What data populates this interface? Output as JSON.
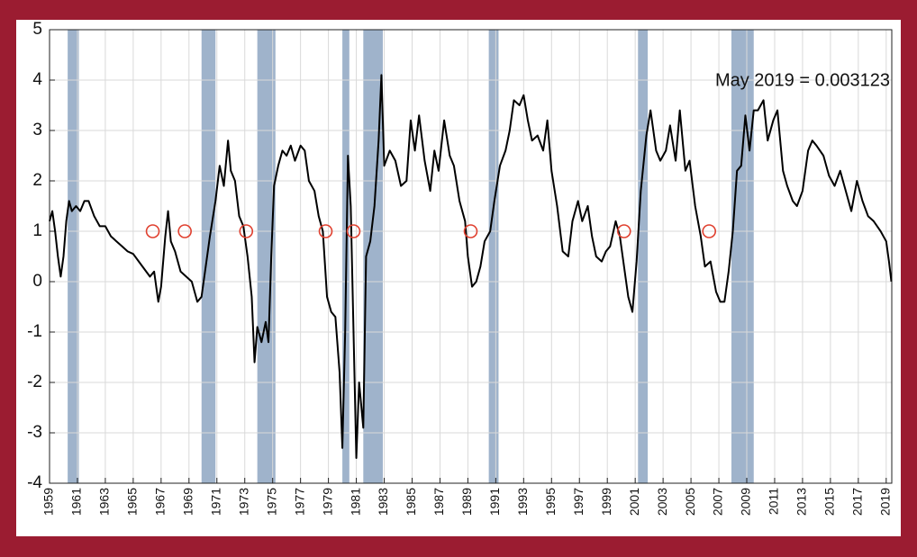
{
  "chart_data": {
    "type": "line",
    "annotation": "May 2019 = 0.003123",
    "x": [
      1959.0,
      1959.2,
      1959.4,
      1959.6,
      1959.8,
      1960.0,
      1960.2,
      1960.4,
      1960.6,
      1960.9,
      1961.2,
      1961.5,
      1961.8,
      1962.2,
      1962.6,
      1963.0,
      1963.4,
      1963.8,
      1964.2,
      1964.6,
      1965.0,
      1965.4,
      1965.8,
      1966.2,
      1966.5,
      1966.8,
      1967.0,
      1967.3,
      1967.5,
      1967.7,
      1968.0,
      1968.4,
      1968.8,
      1969.2,
      1969.6,
      1969.9,
      1970.2,
      1970.5,
      1970.9,
      1971.2,
      1971.5,
      1971.8,
      1972.0,
      1972.3,
      1972.6,
      1972.9,
      1973.2,
      1973.5,
      1973.7,
      1973.9,
      1974.2,
      1974.5,
      1974.7,
      1974.9,
      1975.1,
      1975.4,
      1975.7,
      1976.0,
      1976.3,
      1976.6,
      1977.0,
      1977.3,
      1977.6,
      1978.0,
      1978.3,
      1978.6,
      1978.9,
      1979.2,
      1979.5,
      1979.8,
      1980.0,
      1980.2,
      1980.4,
      1980.6,
      1980.8,
      1981.0,
      1981.2,
      1981.5,
      1981.7,
      1982.0,
      1982.3,
      1982.6,
      1982.8,
      1983.0,
      1983.4,
      1983.8,
      1984.2,
      1984.6,
      1984.9,
      1985.2,
      1985.5,
      1985.9,
      1986.3,
      1986.6,
      1986.9,
      1987.3,
      1987.7,
      1988.0,
      1988.4,
      1988.8,
      1989.0,
      1989.3,
      1989.6,
      1989.9,
      1990.2,
      1990.6,
      1990.9,
      1991.3,
      1991.7,
      1992.0,
      1992.3,
      1992.7,
      1993.0,
      1993.3,
      1993.6,
      1994.0,
      1994.4,
      1994.7,
      1995.0,
      1995.4,
      1995.8,
      1996.2,
      1996.5,
      1996.9,
      1997.2,
      1997.6,
      1997.9,
      1998.2,
      1998.6,
      1998.9,
      1999.2,
      1999.6,
      1999.9,
      2000.2,
      2000.5,
      2000.8,
      2001.1,
      2001.4,
      2001.8,
      2002.1,
      2002.5,
      2002.8,
      2003.2,
      2003.5,
      2003.9,
      2004.2,
      2004.6,
      2004.9,
      2005.3,
      2005.7,
      2006.0,
      2006.4,
      2006.8,
      2007.1,
      2007.4,
      2007.7,
      2008.0,
      2008.3,
      2008.6,
      2008.9,
      2009.2,
      2009.5,
      2009.8,
      2010.2,
      2010.5,
      2010.9,
      2011.2,
      2011.6,
      2011.9,
      2012.3,
      2012.6,
      2013.0,
      2013.4,
      2013.7,
      2014.0,
      2014.5,
      2014.9,
      2015.3,
      2015.7,
      2016.0,
      2016.5,
      2016.9,
      2017.3,
      2017.7,
      2018.1,
      2018.6,
      2019.0,
      2019.2,
      2019.37
    ],
    "series": [
      {
        "color": "#000000",
        "values": [
          1.2,
          1.4,
          1.0,
          0.5,
          0.1,
          0.5,
          1.2,
          1.6,
          1.4,
          1.5,
          1.4,
          1.6,
          1.6,
          1.3,
          1.1,
          1.1,
          0.9,
          0.8,
          0.7,
          0.6,
          0.55,
          0.4,
          0.25,
          0.1,
          0.2,
          -0.4,
          -0.1,
          0.9,
          1.4,
          0.8,
          0.6,
          0.2,
          0.1,
          0.0,
          -0.4,
          -0.3,
          0.3,
          0.9,
          1.6,
          2.3,
          1.9,
          2.8,
          2.2,
          2.0,
          1.3,
          1.1,
          0.5,
          -0.3,
          -1.6,
          -0.9,
          -1.2,
          -0.8,
          -1.2,
          0.5,
          1.9,
          2.3,
          2.6,
          2.5,
          2.7,
          2.4,
          2.7,
          2.6,
          2.0,
          1.8,
          1.3,
          1.0,
          -0.3,
          -0.6,
          -0.7,
          -1.8,
          -3.3,
          -1.0,
          2.5,
          1.5,
          -1.0,
          -3.5,
          -2.0,
          -2.9,
          0.5,
          0.8,
          1.5,
          2.8,
          4.1,
          2.3,
          2.6,
          2.4,
          1.9,
          2.0,
          3.2,
          2.6,
          3.3,
          2.4,
          1.8,
          2.6,
          2.2,
          3.2,
          2.5,
          2.3,
          1.6,
          1.2,
          0.5,
          -0.1,
          0.0,
          0.3,
          0.8,
          1.0,
          1.6,
          2.3,
          2.6,
          3.0,
          3.6,
          3.5,
          3.7,
          3.2,
          2.8,
          2.9,
          2.6,
          3.2,
          2.2,
          1.5,
          0.6,
          0.5,
          1.2,
          1.6,
          1.2,
          1.5,
          0.9,
          0.5,
          0.4,
          0.6,
          0.7,
          1.2,
          0.9,
          0.3,
          -0.3,
          -0.6,
          0.4,
          1.8,
          2.9,
          3.4,
          2.6,
          2.4,
          2.6,
          3.1,
          2.4,
          3.4,
          2.2,
          2.4,
          1.5,
          0.9,
          0.3,
          0.4,
          -0.2,
          -0.4,
          -0.4,
          0.2,
          1.0,
          2.2,
          2.3,
          3.3,
          2.6,
          3.4,
          3.4,
          3.6,
          2.8,
          3.2,
          3.4,
          2.2,
          1.9,
          1.6,
          1.5,
          1.8,
          2.6,
          2.8,
          2.7,
          2.5,
          2.1,
          1.9,
          2.2,
          1.9,
          1.4,
          2.0,
          1.6,
          1.3,
          1.2,
          1.0,
          0.8,
          0.4,
          0.003123
        ]
      }
    ],
    "recessions": [
      [
        1960.3,
        1961.1
      ],
      [
        1969.9,
        1970.9
      ],
      [
        1973.9,
        1975.2
      ],
      [
        1980.0,
        1980.5
      ],
      [
        1981.5,
        1982.9
      ],
      [
        1990.5,
        1991.2
      ],
      [
        2001.2,
        2001.9
      ],
      [
        2007.9,
        2009.5
      ]
    ],
    "recession_color": "#9fb3cb",
    "markers": {
      "x": [
        1966.4,
        1968.7,
        1973.1,
        1978.8,
        1980.8,
        1989.2,
        2000.2,
        2006.3
      ],
      "values": [
        1,
        1,
        1,
        1,
        1,
        1,
        1,
        1
      ],
      "color": "#e0402f"
    },
    "xlim": [
      1959,
      2019.4
    ],
    "ylim": [
      -4,
      5
    ],
    "xticks": [
      1959,
      1961,
      1963,
      1965,
      1967,
      1969,
      1971,
      1973,
      1975,
      1977,
      1979,
      1981,
      1983,
      1985,
      1987,
      1989,
      1991,
      1993,
      1995,
      1997,
      1999,
      2001,
      2003,
      2005,
      2007,
      2009,
      2011,
      2013,
      2015,
      2017,
      2019
    ],
    "yticks": [
      -4,
      -3,
      -2,
      -1,
      0,
      1,
      2,
      3,
      4,
      5
    ],
    "grid": true
  }
}
